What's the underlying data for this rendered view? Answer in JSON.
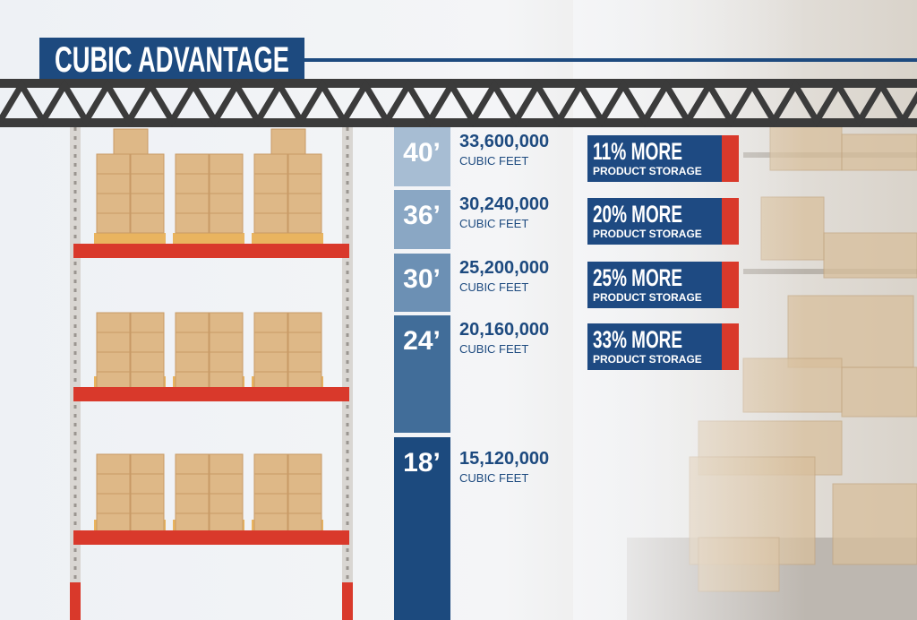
{
  "header": {
    "title": "CUBIC ADVANTAGE"
  },
  "levels": [
    {
      "height": "40’",
      "volume": "33,600,000",
      "unit": "CUBIC FEET",
      "badge": {
        "main": "11% MORE",
        "sub": "PRODUCT STORAGE"
      }
    },
    {
      "height": "36’",
      "volume": "30,240,000",
      "unit": "CUBIC FEET",
      "badge": {
        "main": "20% MORE",
        "sub": "PRODUCT STORAGE"
      }
    },
    {
      "height": "30’",
      "volume": "25,200,000",
      "unit": "CUBIC FEET",
      "badge": {
        "main": "25% MORE",
        "sub": "PRODUCT STORAGE"
      }
    },
    {
      "height": "24’",
      "volume": "20,160,000",
      "unit": "CUBIC FEET",
      "badge": {
        "main": "33% MORE",
        "sub": "PRODUCT STORAGE"
      }
    },
    {
      "height": "18’",
      "volume": "15,120,000",
      "unit": "CUBIC FEET"
    }
  ]
}
